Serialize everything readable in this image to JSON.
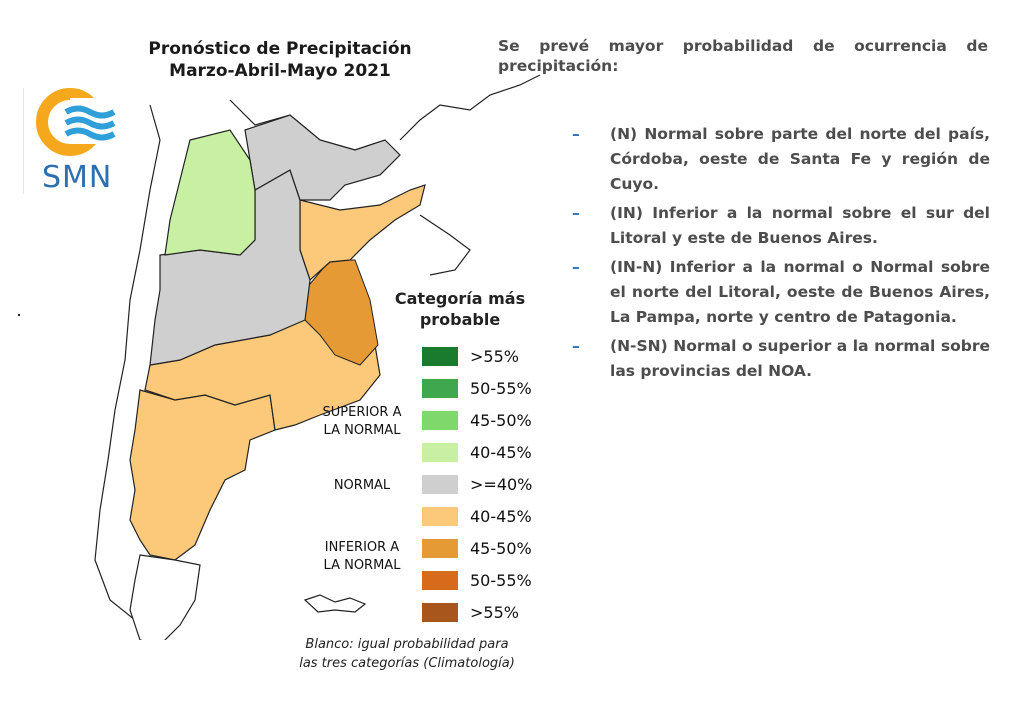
{
  "map": {
    "title_line1": "Pronóstico de Precipitación",
    "title_line2": "Marzo-Abril-Mayo 2021",
    "logo_text": "SMN",
    "legend": {
      "title_line1": "Categoría más",
      "title_line2": "probable",
      "groups": {
        "superior_line1": "SUPERIOR A",
        "superior_line2": "LA NORMAL",
        "normal": "NORMAL",
        "inferior_line1": "INFERIOR A",
        "inferior_line2": "LA NORMAL"
      },
      "items": [
        {
          "range": ">55%",
          "color": "#1a7a2e"
        },
        {
          "range": "50-55%",
          "color": "#3fa84e"
        },
        {
          "range": "45-50%",
          "color": "#7fd86b"
        },
        {
          "range": "40-45%",
          "color": "#c8f0a2"
        },
        {
          "range": ">=40%",
          "color": "#cfcfcf"
        },
        {
          "range": "40-45%",
          "color": "#fcc97a"
        },
        {
          "range": "45-50%",
          "color": "#e59a35"
        },
        {
          "range": "50-55%",
          "color": "#d86a1c"
        },
        {
          "range": ">55%",
          "color": "#a8561b"
        }
      ]
    },
    "footnote_line1": "Blanco: igual probabilidad para",
    "footnote_line2": "las tres categorías (Climatología)"
  },
  "text": {
    "intro": "Se prevé mayor probabilidad de ocurrencia de precipitación:",
    "bullets": [
      "(N) Normal sobre parte del norte del país, Córdoba, oeste de Santa Fe y región de Cuyo.",
      "(IN) Inferior a la normal sobre el sur del Litoral y este de Buenos Aires.",
      "(IN-N) Inferior a la normal o Normal sobre el norte del Litoral, oeste de Buenos Aires, La Pampa, norte y centro de Patagonia.",
      "(N-SN) Normal o superior a la normal sobre las provincias del NOA."
    ]
  }
}
